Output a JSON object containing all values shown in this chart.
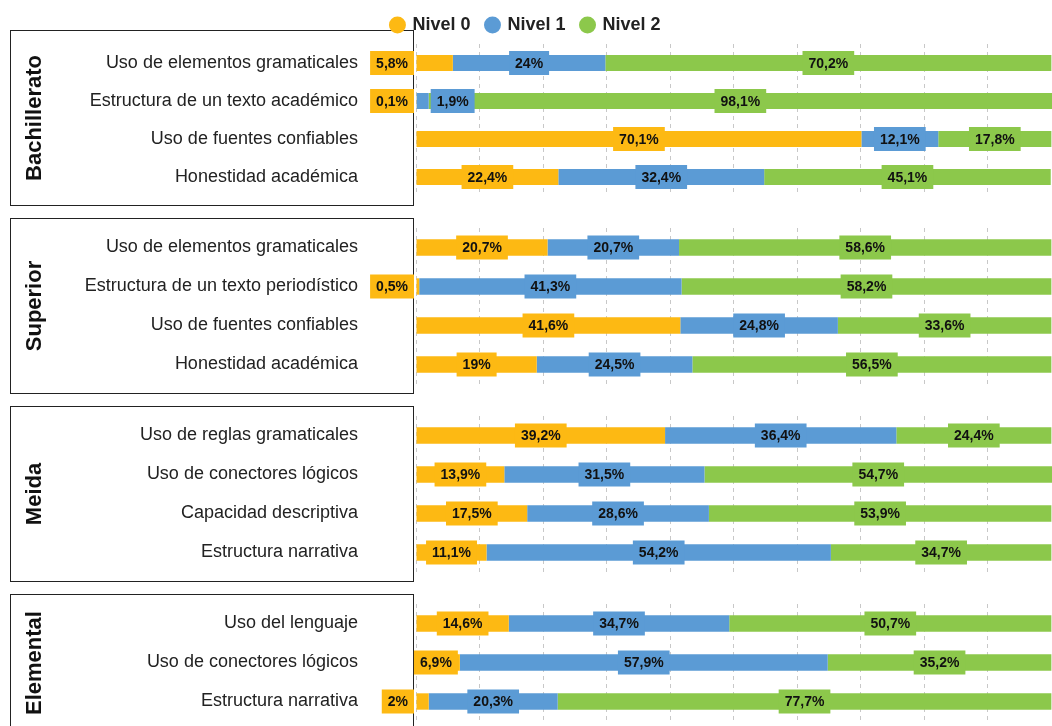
{
  "chart_data": [
    {
      "type": "bar",
      "title": "Bachillerato",
      "orientation": "horizontal",
      "stacked": true,
      "legend": "top",
      "grid": "x",
      "tick_labels": "y",
      "marker": "circle",
      "xlim": [
        0,
        100.1
      ],
      "xticks": [
        {
          "value": 0,
          "label": null
        },
        {
          "value": 10,
          "label": null
        },
        {
          "value": 20,
          "label": null
        },
        {
          "value": 30,
          "label": null
        },
        {
          "value": 40,
          "label": null
        },
        {
          "value": 50,
          "label": null
        },
        {
          "value": 60,
          "label": null
        },
        {
          "value": 70,
          "label": null
        },
        {
          "value": 80,
          "label": null
        },
        {
          "value": 90,
          "label": null
        }
      ],
      "categories": [
        "Uso de elementos gramaticales",
        "Estructura de un texto académico",
        "Uso de fuentes confiables",
        "Honestidad académica"
      ],
      "series": [
        {
          "name": "Nivel 0",
          "color": "#fdb913",
          "values": [
            5.8,
            0.1,
            70.1,
            22.4
          ],
          "value_labels": [
            "5,8%",
            "0,1%",
            "70,1%",
            "22,4%"
          ]
        },
        {
          "name": "Nivel 1",
          "color": "#5b9bd5",
          "values": [
            24,
            1.9,
            12.1,
            32.4
          ],
          "value_labels": [
            "24%",
            "1,9%",
            "12,1%",
            "32,4%"
          ]
        },
        {
          "name": "Nivel 2",
          "color": "#8cc84b",
          "values": [
            70.2,
            98.1,
            17.8,
            45.1
          ],
          "value_labels": [
            "70,2%",
            "98,1%",
            "17,8%",
            "45,1%"
          ]
        }
      ]
    },
    {
      "type": "bar",
      "title": "Superior",
      "orientation": "horizontal",
      "stacked": true,
      "grid": "x",
      "tick_labels": "y",
      "xlim": [
        0,
        100.1
      ],
      "xticks": [
        {
          "value": 0,
          "label": null
        },
        {
          "value": 10,
          "label": null
        },
        {
          "value": 20,
          "label": null
        },
        {
          "value": 30,
          "label": null
        },
        {
          "value": 40,
          "label": null
        },
        {
          "value": 50,
          "label": null
        },
        {
          "value": 60,
          "label": null
        },
        {
          "value": 70,
          "label": null
        },
        {
          "value": 80,
          "label": null
        },
        {
          "value": 90,
          "label": null
        }
      ],
      "categories": [
        "Uso de elementos gramaticales",
        "Estructura de un texto periodístico",
        "Uso de fuentes confiables",
        "Honestidad académica"
      ],
      "series": [
        {
          "color": "#fdb913",
          "values": [
            20.7,
            0.5,
            41.6,
            19
          ],
          "value_labels": [
            "20,7%",
            "0,5%",
            "41,6%",
            "19%"
          ]
        },
        {
          "color": "#5b9bd5",
          "values": [
            20.7,
            41.3,
            24.8,
            24.5
          ],
          "value_labels": [
            "20,7%",
            "41,3%",
            "24,8%",
            "24,5%"
          ]
        },
        {
          "color": "#8cc84b",
          "values": [
            58.6,
            58.2,
            33.6,
            56.5
          ],
          "value_labels": [
            "58,6%",
            "58,2%",
            "33,6%",
            "56,5%"
          ]
        }
      ]
    },
    {
      "type": "bar",
      "title": "Meida",
      "orientation": "horizontal",
      "stacked": true,
      "grid": "x",
      "tick_labels": "y",
      "xlim": [
        0,
        100.1
      ],
      "xticks": [
        {
          "value": 0,
          "label": null
        },
        {
          "value": 10,
          "label": null
        },
        {
          "value": 20,
          "label": null
        },
        {
          "value": 30,
          "label": null
        },
        {
          "value": 40,
          "label": null
        },
        {
          "value": 50,
          "label": null
        },
        {
          "value": 60,
          "label": null
        },
        {
          "value": 70,
          "label": null
        },
        {
          "value": 80,
          "label": null
        },
        {
          "value": 90,
          "label": null
        }
      ],
      "categories": [
        "Uso de reglas gramaticales",
        "Uso de conectores lógicos",
        "Capacidad descriptiva",
        "Estructura narrativa"
      ],
      "series": [
        {
          "color": "#fdb913",
          "values": [
            39.2,
            13.9,
            17.5,
            11.1
          ],
          "value_labels": [
            "39,2%",
            "13,9%",
            "17,5%",
            "11,1%"
          ]
        },
        {
          "color": "#5b9bd5",
          "values": [
            36.4,
            31.5,
            28.6,
            54.2
          ],
          "value_labels": [
            "36,4%",
            "31,5%",
            "28,6%",
            "54,2%"
          ]
        },
        {
          "color": "#8cc84b",
          "values": [
            24.4,
            54.7,
            53.9,
            34.7
          ],
          "value_labels": [
            "24,4%",
            "54,7%",
            "53,9%",
            "34,7%"
          ]
        }
      ]
    },
    {
      "type": "bar",
      "title": "Elemental",
      "orientation": "horizontal",
      "stacked": true,
      "grid": "x",
      "tick_labels": "y",
      "xlim": [
        0,
        100.1
      ],
      "xticks": [
        {
          "value": 0,
          "label": null
        },
        {
          "value": 10,
          "label": null
        },
        {
          "value": 20,
          "label": null
        },
        {
          "value": 30,
          "label": null
        },
        {
          "value": 40,
          "label": null
        },
        {
          "value": 50,
          "label": null
        },
        {
          "value": 60,
          "label": null
        },
        {
          "value": 70,
          "label": null
        },
        {
          "value": 80,
          "label": null
        },
        {
          "value": 90,
          "label": null
        }
      ],
      "categories": [
        "Uso del lenguaje",
        "Uso de conectores lógicos",
        "Estructura narrativa"
      ],
      "series": [
        {
          "color": "#fdb913",
          "values": [
            14.6,
            6.9,
            2
          ],
          "value_labels": [
            "14,6%",
            "6,9%",
            "2%"
          ]
        },
        {
          "color": "#5b9bd5",
          "values": [
            34.7,
            57.9,
            20.3
          ],
          "value_labels": [
            "34,7%",
            "57,9%",
            "20,3%"
          ]
        },
        {
          "color": "#8cc84b",
          "values": [
            50.7,
            35.2,
            77.7
          ],
          "value_labels": [
            "50,7%",
            "35,2%",
            "77,7%"
          ]
        }
      ]
    }
  ]
}
